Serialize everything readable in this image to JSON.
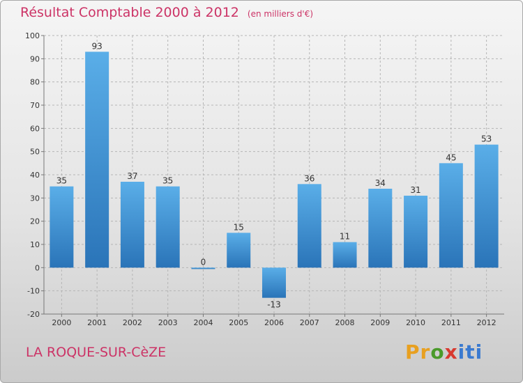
{
  "header": {
    "title": "Résultat Comptable 2000 à 2012",
    "subtitle": "(en milliers d'€)"
  },
  "footer": {
    "town": "LA ROQUE-SUR-CèZE",
    "logo_letters": [
      "P",
      "r",
      "o",
      "x",
      "i",
      "t",
      "i"
    ],
    "logo_colors": [
      "#e8a020",
      "#e8a020",
      "#4a9a2a",
      "#d83a30",
      "#3a7ad0",
      "#3a7ad0",
      "#3a7ad0"
    ]
  },
  "chart_data": {
    "type": "bar",
    "title": "Résultat Comptable 2000 à 2012",
    "subtitle": "(en milliers d'€)",
    "categories": [
      "2000",
      "2001",
      "2002",
      "2003",
      "2004",
      "2005",
      "2006",
      "2007",
      "2008",
      "2009",
      "2010",
      "2011",
      "2012"
    ],
    "values": [
      35,
      93,
      37,
      35,
      0,
      15,
      -13,
      36,
      11,
      34,
      31,
      45,
      53
    ],
    "value_labels": [
      "35",
      "93",
      "37",
      "35",
      "0",
      "15",
      "-13",
      "36",
      "11",
      "34",
      "31",
      "45",
      "53"
    ],
    "ylim": [
      -20,
      100
    ],
    "yticks": [
      -20,
      -10,
      0,
      10,
      20,
      30,
      40,
      50,
      60,
      70,
      80,
      90,
      100
    ],
    "ytick_labels": [
      "-20",
      "-10",
      "0",
      "10",
      "20",
      "30",
      "40",
      "50",
      "60",
      "70",
      "80",
      "90",
      "100"
    ],
    "xlabel": "",
    "ylabel": "",
    "grid": true,
    "bar_color": "#3d8fd4",
    "bar_color_light": "#5aaee8",
    "bar_color_dark": "#2a74b8"
  }
}
